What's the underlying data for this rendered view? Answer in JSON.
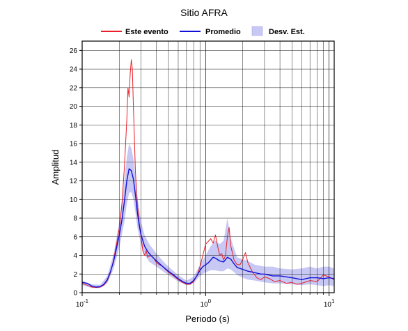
{
  "chart_data": {
    "type": "line",
    "title": "Sitio AFRA",
    "xlabel": "Periodo (s)",
    "ylabel": "Amplitud",
    "x_scale": "log",
    "xlim": [
      0.1,
      11
    ],
    "ylim": [
      0,
      27
    ],
    "grid": true,
    "legend_placement": "top-center",
    "x_ticks": [
      {
        "value": 0.1,
        "base": "10",
        "exp": "-1"
      },
      {
        "value": 1,
        "base": "10",
        "exp": "0"
      },
      {
        "value": 10,
        "base": "10",
        "exp": "1"
      }
    ],
    "y_ticks": [
      0,
      2,
      4,
      6,
      8,
      10,
      12,
      14,
      16,
      18,
      20,
      22,
      24,
      26
    ],
    "legend": [
      {
        "label": "Este evento",
        "kind": "line",
        "color": "#e8202a"
      },
      {
        "label": "Promedio",
        "kind": "line",
        "color": "#1010d8"
      },
      {
        "label": "Desv. Est.",
        "kind": "band",
        "color": "#c8c8f4"
      }
    ],
    "series": [
      {
        "name": "Este evento",
        "color": "#e8202a",
        "points": [
          [
            0.1,
            1.0
          ],
          [
            0.11,
            0.8
          ],
          [
            0.12,
            0.6
          ],
          [
            0.13,
            0.55
          ],
          [
            0.14,
            0.6
          ],
          [
            0.15,
            0.8
          ],
          [
            0.16,
            1.3
          ],
          [
            0.17,
            2.2
          ],
          [
            0.18,
            3.6
          ],
          [
            0.19,
            5.2
          ],
          [
            0.2,
            7.0
          ],
          [
            0.21,
            9.5
          ],
          [
            0.22,
            13.5
          ],
          [
            0.23,
            18.5
          ],
          [
            0.235,
            22.0
          ],
          [
            0.24,
            21.0
          ],
          [
            0.245,
            23.5
          ],
          [
            0.25,
            25.0
          ],
          [
            0.255,
            24.0
          ],
          [
            0.26,
            20.0
          ],
          [
            0.27,
            13.0
          ],
          [
            0.28,
            9.5
          ],
          [
            0.29,
            7.5
          ],
          [
            0.3,
            6.0
          ],
          [
            0.31,
            4.5
          ],
          [
            0.32,
            4.0
          ],
          [
            0.33,
            4.5
          ],
          [
            0.34,
            3.8
          ],
          [
            0.36,
            4.0
          ],
          [
            0.38,
            3.7
          ],
          [
            0.4,
            3.2
          ],
          [
            0.45,
            2.8
          ],
          [
            0.5,
            2.2
          ],
          [
            0.55,
            1.8
          ],
          [
            0.6,
            1.4
          ],
          [
            0.65,
            1.1
          ],
          [
            0.7,
            0.9
          ],
          [
            0.75,
            0.9
          ],
          [
            0.8,
            1.2
          ],
          [
            0.85,
            1.8
          ],
          [
            0.9,
            2.8
          ],
          [
            0.95,
            4.0
          ],
          [
            1.0,
            5.2
          ],
          [
            1.05,
            5.5
          ],
          [
            1.1,
            5.8
          ],
          [
            1.15,
            5.3
          ],
          [
            1.2,
            6.2
          ],
          [
            1.25,
            5.0
          ],
          [
            1.3,
            4.0
          ],
          [
            1.35,
            4.2
          ],
          [
            1.4,
            3.5
          ],
          [
            1.45,
            4.0
          ],
          [
            1.5,
            6.0
          ],
          [
            1.55,
            7.0
          ],
          [
            1.6,
            5.0
          ],
          [
            1.7,
            3.5
          ],
          [
            1.8,
            3.0
          ],
          [
            1.9,
            3.0
          ],
          [
            2.0,
            3.6
          ],
          [
            2.1,
            4.3
          ],
          [
            2.2,
            3.2
          ],
          [
            2.4,
            2.2
          ],
          [
            2.6,
            1.6
          ],
          [
            2.8,
            1.4
          ],
          [
            3.0,
            1.7
          ],
          [
            3.3,
            1.5
          ],
          [
            3.6,
            1.2
          ],
          [
            4.0,
            1.3
          ],
          [
            4.5,
            1.0
          ],
          [
            5.0,
            1.1
          ],
          [
            5.5,
            0.9
          ],
          [
            6.0,
            1.0
          ],
          [
            7.0,
            1.3
          ],
          [
            8.0,
            1.2
          ],
          [
            9.0,
            1.9
          ],
          [
            10.0,
            1.7
          ],
          [
            11.0,
            1.4
          ]
        ]
      },
      {
        "name": "Promedio",
        "color": "#1010d8",
        "points": [
          [
            0.1,
            1.1
          ],
          [
            0.11,
            1.0
          ],
          [
            0.12,
            0.7
          ],
          [
            0.13,
            0.6
          ],
          [
            0.14,
            0.65
          ],
          [
            0.15,
            0.9
          ],
          [
            0.16,
            1.4
          ],
          [
            0.17,
            2.3
          ],
          [
            0.18,
            3.4
          ],
          [
            0.19,
            4.8
          ],
          [
            0.2,
            6.2
          ],
          [
            0.21,
            7.8
          ],
          [
            0.22,
            9.8
          ],
          [
            0.23,
            12.0
          ],
          [
            0.24,
            13.3
          ],
          [
            0.25,
            13.1
          ],
          [
            0.26,
            12.2
          ],
          [
            0.27,
            10.5
          ],
          [
            0.28,
            8.6
          ],
          [
            0.29,
            7.2
          ],
          [
            0.3,
            6.2
          ],
          [
            0.32,
            5.0
          ],
          [
            0.34,
            4.4
          ],
          [
            0.36,
            4.0
          ],
          [
            0.4,
            3.4
          ],
          [
            0.45,
            2.8
          ],
          [
            0.5,
            2.3
          ],
          [
            0.55,
            1.9
          ],
          [
            0.6,
            1.5
          ],
          [
            0.65,
            1.2
          ],
          [
            0.7,
            1.0
          ],
          [
            0.75,
            1.0
          ],
          [
            0.8,
            1.3
          ],
          [
            0.85,
            1.8
          ],
          [
            0.9,
            2.4
          ],
          [
            0.95,
            2.8
          ],
          [
            1.0,
            3.0
          ],
          [
            1.05,
            3.2
          ],
          [
            1.1,
            3.5
          ],
          [
            1.15,
            3.8
          ],
          [
            1.2,
            3.7
          ],
          [
            1.3,
            3.4
          ],
          [
            1.4,
            3.3
          ],
          [
            1.5,
            3.8
          ],
          [
            1.6,
            3.6
          ],
          [
            1.7,
            3.1
          ],
          [
            1.8,
            2.7
          ],
          [
            1.9,
            2.6
          ],
          [
            2.0,
            2.5
          ],
          [
            2.2,
            2.3
          ],
          [
            2.4,
            2.2
          ],
          [
            2.6,
            2.1
          ],
          [
            2.8,
            2.0
          ],
          [
            3.0,
            2.0
          ],
          [
            3.5,
            1.8
          ],
          [
            4.0,
            1.8
          ],
          [
            4.5,
            1.7
          ],
          [
            5.0,
            1.6
          ],
          [
            5.5,
            1.5
          ],
          [
            6.0,
            1.4
          ],
          [
            7.0,
            1.6
          ],
          [
            8.0,
            1.6
          ],
          [
            9.0,
            1.5
          ],
          [
            10.0,
            1.6
          ],
          [
            11.0,
            1.5
          ]
        ]
      }
    ],
    "std_band": {
      "name": "Desv. Est.",
      "color": "#c8c8f4",
      "points": [
        [
          0.1,
          0.8,
          1.3
        ],
        [
          0.12,
          0.5,
          0.9
        ],
        [
          0.14,
          0.5,
          0.85
        ],
        [
          0.16,
          1.0,
          1.8
        ],
        [
          0.18,
          2.6,
          4.2
        ],
        [
          0.2,
          4.8,
          7.6
        ],
        [
          0.22,
          7.6,
          12.0
        ],
        [
          0.23,
          9.5,
          14.5
        ],
        [
          0.24,
          10.7,
          16.0
        ],
        [
          0.25,
          10.8,
          15.5
        ],
        [
          0.26,
          10.0,
          14.4
        ],
        [
          0.27,
          8.6,
          12.4
        ],
        [
          0.28,
          7.0,
          10.3
        ],
        [
          0.3,
          5.1,
          7.6
        ],
        [
          0.32,
          4.1,
          6.2
        ],
        [
          0.35,
          3.3,
          5.2
        ],
        [
          0.4,
          2.8,
          4.2
        ],
        [
          0.45,
          2.3,
          3.4
        ],
        [
          0.5,
          1.9,
          2.8
        ],
        [
          0.6,
          1.2,
          1.9
        ],
        [
          0.7,
          0.8,
          1.3
        ],
        [
          0.8,
          1.0,
          1.7
        ],
        [
          0.9,
          1.8,
          3.0
        ],
        [
          1.0,
          2.2,
          4.0
        ],
        [
          1.1,
          2.4,
          5.0
        ],
        [
          1.2,
          2.4,
          5.6
        ],
        [
          1.3,
          2.3,
          5.2
        ],
        [
          1.4,
          2.3,
          5.6
        ],
        [
          1.5,
          2.6,
          8.0
        ],
        [
          1.6,
          2.5,
          5.8
        ],
        [
          1.8,
          1.9,
          3.8
        ],
        [
          2.0,
          1.6,
          3.6
        ],
        [
          2.2,
          1.4,
          3.4
        ],
        [
          2.5,
          1.3,
          3.0
        ],
        [
          3.0,
          1.1,
          2.8
        ],
        [
          3.5,
          1.0,
          2.8
        ],
        [
          4.0,
          1.0,
          2.6
        ],
        [
          5.0,
          0.9,
          2.5
        ],
        [
          6.0,
          0.8,
          2.6
        ],
        [
          7.0,
          0.9,
          2.8
        ],
        [
          8.0,
          0.8,
          2.6
        ],
        [
          9.0,
          0.7,
          2.8
        ],
        [
          10.0,
          0.8,
          2.8
        ],
        [
          11.0,
          0.7,
          2.6
        ]
      ]
    }
  }
}
